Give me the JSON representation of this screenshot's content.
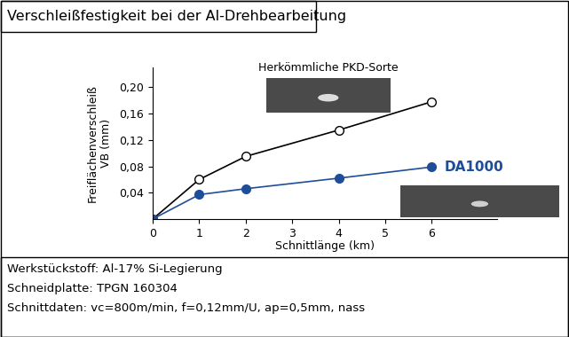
{
  "chart_data": {
    "type": "line",
    "title": "Verschleißfestigkeit bei der Al-Drehbearbeitung",
    "x_label": "Schnittlänge (km)",
    "y_label": "Freiflächenverschleiß\nVB (mm)",
    "x": [
      0,
      1,
      2,
      4,
      6
    ],
    "series": [
      {
        "name": "Herkömmliche PKD-Sorte",
        "color": "#000000",
        "marker": "o",
        "values": [
          0,
          0.06,
          0.095,
          0.135,
          0.178
        ]
      },
      {
        "name": "DA1000",
        "color": "#1f4e99",
        "marker": "o",
        "values": [
          0,
          0.037,
          0.046,
          0.062,
          0.079
        ]
      }
    ],
    "xlim": [
      0,
      7.4
    ],
    "ylim": [
      0,
      0.23
    ],
    "xticks": [
      0,
      1,
      2,
      3,
      4,
      5,
      6
    ],
    "yticks": [
      {
        "value": 0.04,
        "label": "0,04"
      },
      {
        "value": 0.08,
        "label": "0,08"
      },
      {
        "value": 0.12,
        "label": "0,12"
      },
      {
        "value": 0.16,
        "label": "0,16"
      },
      {
        "value": 0.2,
        "label": "0,20"
      }
    ],
    "grid": false,
    "annotations": [
      "Werkstückstoff: Al-17% Si-Legierung",
      "Schneidplatte: TPGN 160304",
      "Schnittdaten: vc=800m/min, f=0,12mm/U, ap=0,5mm, nass"
    ]
  }
}
